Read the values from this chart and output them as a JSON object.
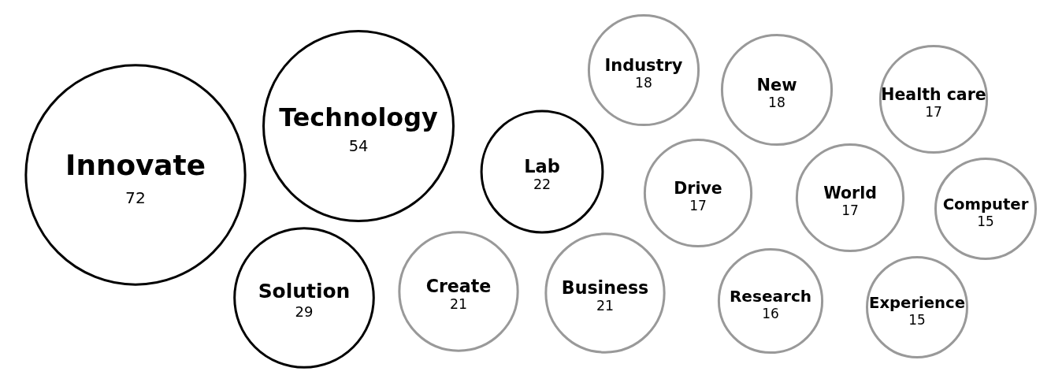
{
  "chart_data": {
    "type": "other",
    "categories": [
      "Innovate",
      "Technology",
      "Lab",
      "Solution",
      "Create",
      "Business",
      "Industry",
      "New",
      "Health care",
      "Drive",
      "World",
      "Computer",
      "Research",
      "Experience"
    ],
    "values": [
      72,
      54,
      22,
      29,
      21,
      21,
      18,
      18,
      17,
      17,
      17,
      15,
      16,
      15
    ],
    "colors": [
      "#000000",
      "#000000",
      "#000000",
      "#000000",
      "#999999",
      "#999999",
      "#999999",
      "#999999",
      "#999999",
      "#999999",
      "#999999",
      "#999999",
      "#999999",
      "#999999"
    ],
    "data_labels": true
  }
}
